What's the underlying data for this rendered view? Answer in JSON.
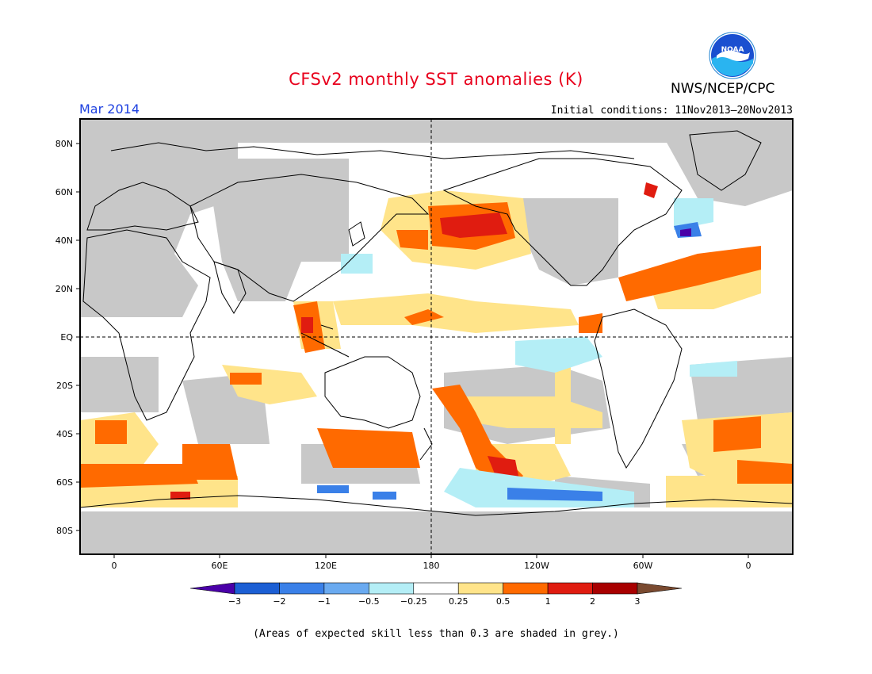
{
  "title": "CFSv2 monthly SST anomalies (K)",
  "agency": "NWS/NCEP/CPC",
  "logo_text": "NOAA",
  "month": "Mar 2014",
  "initial_conditions": "Initial conditions: 11Nov2013–20Nov2013",
  "lat_labels": [
    "80N",
    "60N",
    "40N",
    "20N",
    "EQ",
    "20S",
    "40S",
    "60S",
    "80S"
  ],
  "lon_labels": [
    "0",
    "60E",
    "120E",
    "180",
    "120W",
    "60W",
    "0"
  ],
  "colorbar": {
    "labels": [
      "−3",
      "−2",
      "−1",
      "−0.5",
      "−0.25",
      "0.25",
      "0.5",
      "1",
      "2",
      "3"
    ],
    "colors": [
      "#4a00a8",
      "#1c5fd4",
      "#3a80e8",
      "#6aaaf0",
      "#b4eef6",
      "#ffffff",
      "#ffe48a",
      "#ff6a00",
      "#e01c10",
      "#a80000",
      "#7a4a30"
    ]
  },
  "footnote": "(Areas of expected skill less than 0.3 are shaded in grey.)"
}
